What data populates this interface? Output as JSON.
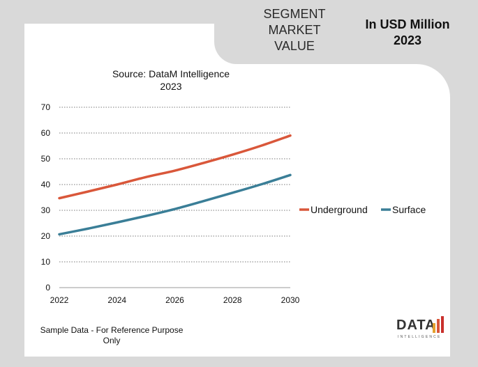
{
  "header": {
    "segment_title": "SEGMENT\nMARKET\nVALUE",
    "unit_title": "In USD Million\n2023"
  },
  "source": "Source: DataM Intelligence\n2023",
  "footnote": "Sample Data - For Reference Purpose\nOnly",
  "logo": {
    "text": "DATA",
    "subtext": "INTELLIGENCE"
  },
  "colors": {
    "underground": "#d9573a",
    "surface": "#3a7e97",
    "panel": "#ffffff",
    "background": "#d9d9d9"
  },
  "chart_data": {
    "type": "line",
    "x": [
      2022,
      2023,
      2024,
      2025,
      2026,
      2027,
      2028,
      2029,
      2030
    ],
    "xticks": [
      "2022",
      "2024",
      "2026",
      "2028",
      "2030"
    ],
    "yticks": [
      "0",
      "10",
      "20",
      "30",
      "40",
      "50",
      "60",
      "70"
    ],
    "ylim": [
      0,
      70
    ],
    "xlim": [
      2022,
      2030
    ],
    "grid": "horizontal-dotted",
    "legend_position": "right",
    "series": [
      {
        "name": "Underground",
        "color_key": "underground",
        "values": [
          34.7,
          37.3,
          40.0,
          42.9,
          45.4,
          48.4,
          51.6,
          55.1,
          59.0
        ]
      },
      {
        "name": "Surface",
        "color_key": "surface",
        "values": [
          20.7,
          22.9,
          25.3,
          27.8,
          30.5,
          33.6,
          36.8,
          40.1,
          43.7
        ]
      }
    ]
  }
}
